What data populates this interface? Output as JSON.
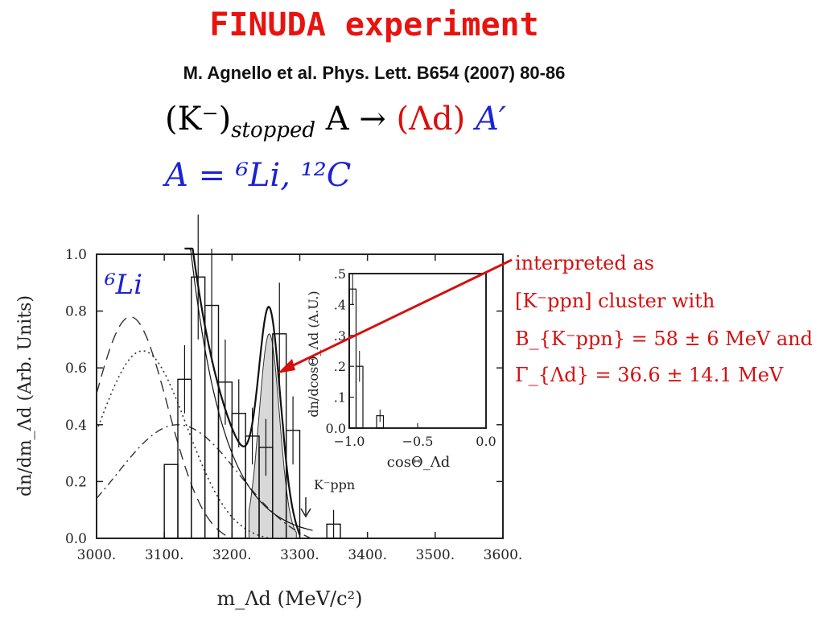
{
  "title": "FINUDA experiment",
  "reference": "M. Agnello et al. Phys. Lett.  B654 (2007) 80-86",
  "reaction": {
    "lhs": "(K⁻)",
    "lhs_sub": "stopped",
    "target": "A →",
    "products_red": "(Λd)",
    "products_blue": "A′"
  },
  "targets_line": "A = ⁶Li, ¹²C",
  "annotation": {
    "line1": "interpreted as",
    "line2": "[K⁻ppn] cluster with",
    "line3": "B_{K⁻ppn} = 58 ± 6 MeV and",
    "line4": "Γ_{Λd} = 36.6 ± 14.1 MeV"
  },
  "colors": {
    "title": "#e8130f",
    "blue": "#1d22d6",
    "arrow": "#d41010"
  },
  "chart_data": [
    {
      "type": "histogram",
      "panel_label": "⁶Li",
      "xlabel": "m_Λd  (MeV/c²)",
      "ylabel": "dn/dm_Λd  (Arb. Units)",
      "xlim": [
        3000,
        3600
      ],
      "ylim": [
        0,
        1.0
      ],
      "x_ticks": [
        "3000.",
        "3100.",
        "3200.",
        "3300.",
        "3400.",
        "3500.",
        "3600."
      ],
      "y_ticks": [
        "0.0",
        "0.2",
        "0.4",
        "0.6",
        "0.8",
        "1.0"
      ],
      "bin_width": 20,
      "bins": [
        {
          "x": 3100,
          "y": 0.26,
          "err": 0.0
        },
        {
          "x": 3120,
          "y": 0.56,
          "err": 0.12
        },
        {
          "x": 3140,
          "y": 0.92,
          "err": 0.22
        },
        {
          "x": 3160,
          "y": 0.82,
          "err": 0.2
        },
        {
          "x": 3180,
          "y": 0.55,
          "err": 0.15
        },
        {
          "x": 3200,
          "y": 0.44,
          "err": 0.12
        },
        {
          "x": 3220,
          "y": 0.36,
          "err": 0.1
        },
        {
          "x": 3240,
          "y": 0.32,
          "err": 0.1
        },
        {
          "x": 3260,
          "y": 0.72,
          "err": 0.18
        },
        {
          "x": 3280,
          "y": 0.38,
          "err": 0.12
        },
        {
          "x": 3300,
          "y": 0.0,
          "err": 0.0
        },
        {
          "x": 3320,
          "y": 0.0,
          "err": 0.0
        },
        {
          "x": 3340,
          "y": 0.05,
          "err": 0.05
        }
      ],
      "annotation_text": "K⁻ppn",
      "annotation_x": 3300
    },
    {
      "type": "histogram",
      "inset": true,
      "xlabel": "cosΘ_Λd",
      "ylabel": "dn/dcosΘ_Λd (A.U.)",
      "xlim": [
        -1.0,
        0.0
      ],
      "ylim": [
        0,
        0.5
      ],
      "x_ticks": [
        "−1.0",
        "−0.5",
        "0.0"
      ],
      "y_ticks": [
        "0.0",
        ".1",
        ".2",
        ".3",
        ".4",
        ".5"
      ],
      "bins": [
        {
          "x": -1.0,
          "y": 0.45,
          "err": 0.05
        },
        {
          "x": -0.95,
          "y": 0.2,
          "err": 0.05
        },
        {
          "x": -0.8,
          "y": 0.04,
          "err": 0.02
        }
      ]
    }
  ]
}
